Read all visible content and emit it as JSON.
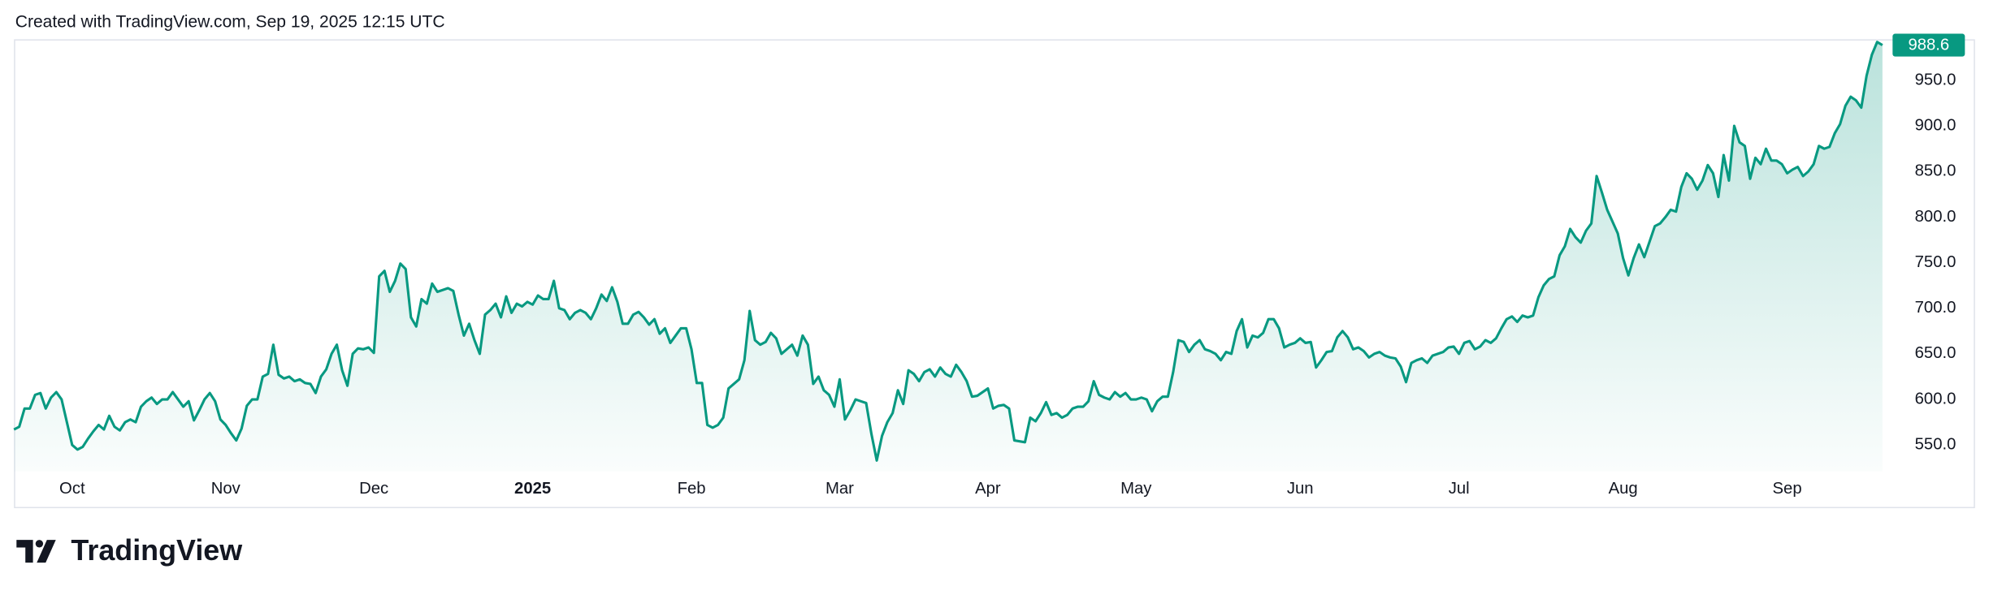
{
  "header": {
    "text": "Created with TradingView.com, Sep 19, 2025 12:15 UTC"
  },
  "chart_data": {
    "type": "line",
    "color": "#089981",
    "values": [
      567,
      570,
      590,
      590,
      605,
      607,
      590,
      602,
      608,
      600,
      575,
      550,
      545,
      548,
      557,
      565,
      572,
      567,
      582,
      570,
      566,
      575,
      578,
      575,
      592,
      598,
      602,
      595,
      600,
      600,
      608,
      600,
      592,
      598,
      577,
      588,
      600,
      607,
      598,
      578,
      572,
      563,
      555,
      568,
      593,
      600,
      600,
      625,
      628,
      660,
      627,
      623,
      625,
      620,
      622,
      618,
      617,
      607,
      625,
      633,
      650,
      660,
      632,
      615,
      650,
      656,
      655,
      657,
      651,
      735,
      741,
      718,
      730,
      749,
      743,
      690,
      680,
      710,
      705,
      727,
      718,
      720,
      722,
      719,
      693,
      670,
      683,
      665,
      650,
      693,
      698,
      705,
      690,
      713,
      695,
      705,
      702,
      707,
      704,
      714,
      710,
      710,
      730,
      700,
      698,
      688,
      695,
      698,
      695,
      688,
      700,
      715,
      708,
      723,
      707,
      683,
      683,
      693,
      696,
      690,
      682,
      688,
      672,
      678,
      662,
      670,
      678,
      678,
      655,
      618,
      618,
      572,
      569,
      572,
      580,
      612,
      617,
      622,
      643,
      697,
      665,
      660,
      663,
      673,
      667,
      650,
      655,
      660,
      648,
      670,
      660,
      617,
      625,
      610,
      605,
      592,
      622,
      578,
      588,
      600,
      598,
      596,
      562,
      533,
      560,
      575,
      585,
      610,
      595,
      632,
      628,
      620,
      630,
      633,
      625,
      635,
      628,
      625,
      638,
      630,
      620,
      603,
      604,
      608,
      612,
      590,
      593,
      594,
      590,
      555,
      554,
      553,
      580,
      576,
      585,
      597,
      583,
      585,
      580,
      583,
      590,
      592,
      592,
      598,
      620,
      605,
      602,
      600,
      608,
      603,
      607,
      600,
      600,
      602,
      600,
      587,
      598,
      603,
      603,
      630,
      665,
      663,
      652,
      660,
      665,
      655,
      653,
      650,
      643,
      652,
      650,
      675,
      688,
      657,
      670,
      668,
      673,
      688,
      688,
      678,
      657,
      660,
      662,
      667,
      662,
      663,
      635,
      643,
      652,
      653,
      668,
      675,
      668,
      655,
      657,
      653,
      646,
      650,
      652,
      648,
      646,
      645,
      636,
      619,
      640,
      643,
      645,
      640,
      648,
      650,
      652,
      657,
      658,
      650,
      662,
      664,
      655,
      658,
      665,
      662,
      667,
      678,
      688,
      691,
      685,
      692,
      690,
      692,
      712,
      725,
      732,
      735,
      758,
      768,
      787,
      778,
      772,
      785,
      793,
      845,
      827,
      808,
      795,
      782,
      755,
      736,
      755,
      770,
      756,
      773,
      790,
      793,
      800,
      808,
      806,
      833,
      848,
      842,
      830,
      840,
      857,
      848,
      822,
      868,
      840,
      900,
      882,
      878,
      842,
      865,
      858,
      875,
      862,
      862,
      858,
      848,
      852,
      855,
      845,
      850,
      858,
      878,
      875,
      877,
      892,
      902,
      922,
      932,
      928,
      920,
      955,
      978,
      992,
      988.6
    ],
    "xlim": [
      0,
      353
    ],
    "xticks": [
      {
        "value": 11,
        "label": "Oct"
      },
      {
        "value": 40,
        "label": "Nov"
      },
      {
        "value": 68,
        "label": "Dec"
      },
      {
        "value": 98,
        "label": "2025"
      },
      {
        "value": 128,
        "label": "Feb"
      },
      {
        "value": 156,
        "label": "Mar"
      },
      {
        "value": 184,
        "label": "Apr"
      },
      {
        "value": 212,
        "label": "May"
      },
      {
        "value": 243,
        "label": "Jun"
      },
      {
        "value": 273,
        "label": "Jul"
      },
      {
        "value": 304,
        "label": "Aug"
      },
      {
        "value": 335,
        "label": "Sep"
      }
    ],
    "ylim": [
      521,
      995
    ],
    "yticks": [
      {
        "value": 550,
        "label": "550.0"
      },
      {
        "value": 600,
        "label": "600.0"
      },
      {
        "value": 650,
        "label": "650.0"
      },
      {
        "value": 700,
        "label": "700.0"
      },
      {
        "value": 750,
        "label": "750.0"
      },
      {
        "value": 800,
        "label": "800.0"
      },
      {
        "value": 850,
        "label": "850.0"
      },
      {
        "value": 900,
        "label": "900.0"
      },
      {
        "value": 950,
        "label": "950.0"
      }
    ],
    "grid": false
  },
  "footer": {
    "brand": "TradingView"
  }
}
